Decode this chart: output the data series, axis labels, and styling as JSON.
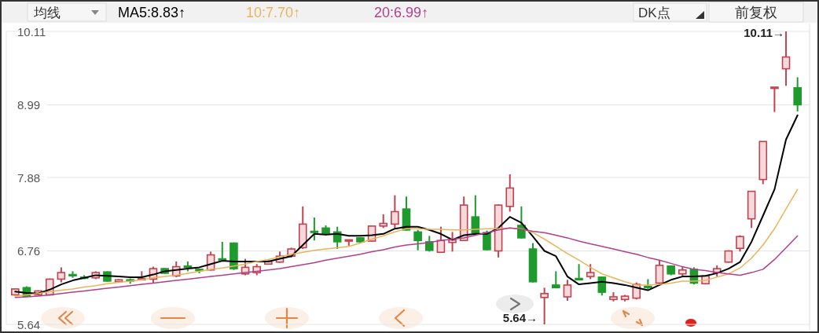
{
  "chart_data": [
    {
      "type": "candlestick",
      "categories": [
        null,
        null,
        null,
        null,
        null,
        null,
        null,
        null,
        null,
        null,
        null,
        null,
        null,
        null,
        null,
        null,
        null,
        null,
        null,
        null,
        null,
        null,
        null,
        null,
        null,
        null,
        null,
        null,
        null,
        null,
        null,
        null,
        null,
        null,
        null,
        null,
        null,
        null,
        null,
        null,
        null,
        null,
        null,
        null,
        null,
        null,
        null,
        null,
        null,
        null,
        null,
        null,
        null,
        null,
        null,
        null,
        null,
        null,
        null,
        null,
        null,
        null,
        null,
        null,
        null,
        null,
        null,
        null,
        null
      ],
      "ohlc": [
        [
          6.09,
          6.19,
          6.08,
          6.18
        ],
        [
          6.2,
          6.22,
          6.06,
          6.07
        ],
        [
          6.09,
          6.16,
          6.08,
          6.15
        ],
        [
          6.09,
          6.34,
          6.08,
          6.33
        ],
        [
          6.33,
          6.51,
          6.28,
          6.43
        ],
        [
          6.4,
          6.45,
          6.35,
          6.39
        ],
        [
          6.36,
          6.39,
          6.33,
          6.35
        ],
        [
          6.35,
          6.45,
          6.33,
          6.43
        ],
        [
          6.44,
          6.45,
          6.29,
          6.3
        ],
        [
          6.29,
          6.33,
          6.28,
          6.32
        ],
        [
          6.32,
          6.34,
          6.26,
          6.31
        ],
        [
          6.32,
          6.45,
          6.31,
          6.34
        ],
        [
          6.33,
          6.52,
          6.27,
          6.49
        ],
        [
          6.49,
          6.5,
          6.41,
          6.42
        ],
        [
          6.38,
          6.6,
          6.36,
          6.52
        ],
        [
          6.53,
          6.6,
          6.45,
          6.52
        ],
        [
          6.48,
          6.49,
          6.42,
          6.46
        ],
        [
          6.47,
          6.75,
          6.46,
          6.7
        ],
        [
          6.64,
          6.9,
          6.62,
          6.63
        ],
        [
          6.88,
          6.89,
          6.47,
          6.49
        ],
        [
          6.41,
          6.64,
          6.39,
          6.51
        ],
        [
          6.43,
          6.56,
          6.39,
          6.52
        ],
        [
          6.56,
          6.62,
          6.55,
          6.6
        ],
        [
          6.59,
          6.75,
          6.58,
          6.68
        ],
        [
          6.68,
          6.81,
          6.66,
          6.79
        ],
        [
          6.81,
          7.44,
          6.79,
          7.17
        ],
        [
          7.06,
          7.27,
          6.92,
          7.05
        ],
        [
          7.11,
          7.15,
          7.0,
          7.03
        ],
        [
          7.05,
          7.13,
          6.79,
          6.9
        ],
        [
          6.91,
          6.93,
          6.84,
          6.93
        ],
        [
          6.96,
          6.97,
          6.88,
          6.9
        ],
        [
          6.91,
          7.14,
          6.9,
          7.14
        ],
        [
          7.14,
          7.32,
          7.11,
          7.18
        ],
        [
          7.17,
          7.61,
          7.11,
          7.36
        ],
        [
          7.4,
          7.59,
          7.07,
          7.08
        ],
        [
          7.05,
          7.08,
          6.77,
          6.92
        ],
        [
          6.9,
          6.99,
          6.75,
          6.77
        ],
        [
          6.74,
          7.13,
          6.73,
          6.92
        ],
        [
          6.89,
          7.05,
          6.75,
          6.93
        ],
        [
          6.92,
          7.59,
          6.92,
          7.46
        ],
        [
          7.28,
          7.61,
          7.0,
          7.04
        ],
        [
          7.04,
          7.07,
          6.77,
          6.78
        ],
        [
          6.76,
          7.47,
          6.66,
          7.46
        ],
        [
          7.44,
          7.93,
          7.36,
          7.72
        ],
        [
          7.15,
          7.44,
          6.95,
          6.96
        ],
        [
          6.79,
          6.88,
          6.28,
          6.29
        ],
        [
          6.05,
          6.2,
          5.64,
          6.11
        ],
        [
          6.24,
          6.45,
          6.19,
          6.2
        ],
        [
          6.06,
          6.32,
          6.0,
          6.24
        ],
        [
          6.34,
          6.56,
          6.31,
          6.32
        ],
        [
          6.37,
          6.56,
          6.33,
          6.43
        ],
        [
          6.36,
          6.37,
          6.08,
          6.13
        ],
        [
          6.02,
          6.13,
          5.99,
          6.06
        ],
        [
          6.02,
          6.09,
          5.99,
          6.07
        ],
        [
          6.04,
          6.28,
          6.02,
          6.25
        ],
        [
          6.22,
          6.33,
          6.18,
          6.21
        ],
        [
          6.27,
          6.62,
          6.25,
          6.54
        ],
        [
          6.53,
          6.54,
          6.39,
          6.41
        ],
        [
          6.41,
          6.52,
          6.37,
          6.47
        ],
        [
          6.48,
          6.51,
          6.25,
          6.27
        ],
        [
          6.26,
          6.39,
          6.25,
          6.38
        ],
        [
          6.43,
          6.54,
          6.37,
          6.49
        ],
        [
          6.59,
          6.77,
          6.58,
          6.76
        ],
        [
          6.8,
          7.0,
          6.75,
          6.98
        ],
        [
          7.25,
          7.67,
          7.11,
          7.67
        ],
        [
          7.85,
          8.43,
          7.78,
          8.43
        ],
        [
          9.24,
          9.26,
          8.88,
          9.26
        ],
        [
          9.54,
          10.11,
          9.28,
          9.72
        ],
        [
          9.25,
          9.41,
          8.89,
          8.99
        ]
      ],
      "colors": [
        "#c0444f",
        "#1f9a2c",
        "#c0444f",
        "#c0444f",
        "#c0444f",
        "#1f9a2c",
        "#1f9a2c",
        "#c0444f",
        "#1f9a2c",
        "#c0444f",
        "#1f9a2c",
        "#c0444f",
        "#c0444f",
        "#1f9a2c",
        "#c0444f",
        "#1f9a2c",
        "#1f9a2c",
        "#c0444f",
        "#1f9a2c",
        "#1f9a2c",
        "#c0444f",
        "#c0444f",
        "#c0444f",
        "#c0444f",
        "#c0444f",
        "#c0444f",
        "#1f9a2c",
        "#1f9a2c",
        "#1f9a2c",
        "#c0444f",
        "#1f9a2c",
        "#c0444f",
        "#c0444f",
        "#c0444f",
        "#1f9a2c",
        "#1f9a2c",
        "#1f9a2c",
        "#c0444f",
        "#c0444f",
        "#c0444f",
        "#1f9a2c",
        "#1f9a2c",
        "#c0444f",
        "#c0444f",
        "#1f9a2c",
        "#1f9a2c",
        "#c0444f",
        "#1f9a2c",
        "#c0444f",
        "#1f9a2c",
        "#c0444f",
        "#1f9a2c",
        "#c0444f",
        "#c0444f",
        "#c0444f",
        "#1f9a2c",
        "#c0444f",
        "#1f9a2c",
        "#c0444f",
        "#1f9a2c",
        "#c0444f",
        "#c0444f",
        "#c0444f",
        "#c0444f",
        "#c0444f",
        "#c0444f",
        "#c0444f",
        "#c0444f",
        "#1f9a2c"
      ],
      "ylim": [
        5.64,
        10.11
      ],
      "yticks": [
        5.64,
        6.76,
        7.88,
        8.99,
        10.11
      ],
      "grid": "y",
      "tick_labels": "y",
      "annotations": [
        "均线",
        "DK点",
        "前复权",
        "10.11→",
        "5.64→"
      ]
    },
    {
      "type": "line",
      "categories": [
        null,
        null,
        null,
        null,
        null,
        null,
        null,
        null,
        null,
        null,
        null,
        null,
        null,
        null,
        null,
        null,
        null,
        null,
        null,
        null,
        null,
        null,
        null,
        null,
        null,
        null,
        null,
        null,
        null,
        null,
        null,
        null,
        null,
        null,
        null,
        null,
        null,
        null,
        null,
        null,
        null,
        null,
        null,
        null,
        null,
        null,
        null,
        null,
        null,
        null,
        null,
        null,
        null,
        null,
        null,
        null,
        null,
        null,
        null,
        null,
        null,
        null,
        null,
        null,
        null,
        null,
        null,
        null,
        null
      ],
      "series": [
        {
          "name": "MA5:8.83↑",
          "color": "#000000",
          "values": [
            6.14,
            6.12,
            6.11,
            6.17,
            6.25,
            6.31,
            6.35,
            6.39,
            6.38,
            6.37,
            6.36,
            6.36,
            6.4,
            6.45,
            6.47,
            6.49,
            6.51,
            6.56,
            6.61,
            6.6,
            6.6,
            6.6,
            6.6,
            6.64,
            6.68,
            6.85,
            7.02,
            7.01,
            7.02,
            6.99,
            6.99,
            7.0,
            7.02,
            7.1,
            7.13,
            7.13,
            7.08,
            7.02,
            6.93,
            7.0,
            7.02,
            7.02,
            7.11,
            7.28,
            7.19,
            6.98,
            6.76,
            6.68,
            6.37,
            6.25,
            6.27,
            6.29,
            6.27,
            6.24,
            6.2,
            6.16,
            6.24,
            6.32,
            6.37,
            6.37,
            6.38,
            6.42,
            6.49,
            6.59,
            6.9,
            7.3,
            7.7,
            8.46,
            8.83
          ]
        },
        {
          "name": "10:7.70↑",
          "color": "#e8b45c",
          "values": [
            6.07,
            6.09,
            6.11,
            6.14,
            6.16,
            6.18,
            6.21,
            6.23,
            6.26,
            6.28,
            6.3,
            6.32,
            6.35,
            6.37,
            6.39,
            6.42,
            6.45,
            6.48,
            6.5,
            6.53,
            6.56,
            6.6,
            6.63,
            6.67,
            6.71,
            6.74,
            6.77,
            6.79,
            6.81,
            6.83,
            6.88,
            6.94,
            6.99,
            7.05,
            7.1,
            7.1,
            7.09,
            7.09,
            7.08,
            7.08,
            7.09,
            7.1,
            7.1,
            7.11,
            7.1,
            7.04,
            6.94,
            6.83,
            6.72,
            6.62,
            6.51,
            6.41,
            6.35,
            6.29,
            6.24,
            6.24,
            6.25,
            6.27,
            6.3,
            6.3,
            6.31,
            6.36,
            6.41,
            6.5,
            6.65,
            6.85,
            7.1,
            7.4,
            7.7
          ]
        },
        {
          "name": "20:6.99↑",
          "color": "#b23f8c",
          "values": [
            6.05,
            6.06,
            6.07,
            6.09,
            6.11,
            6.13,
            6.15,
            6.17,
            6.19,
            6.21,
            6.23,
            6.25,
            6.27,
            6.29,
            6.31,
            6.33,
            6.35,
            6.37,
            6.39,
            6.41,
            6.43,
            6.45,
            6.47,
            6.49,
            6.52,
            6.55,
            6.58,
            6.62,
            6.65,
            6.68,
            6.71,
            6.75,
            6.78,
            6.82,
            6.85,
            6.87,
            6.89,
            6.92,
            6.94,
            6.96,
            7.0,
            7.04,
            7.08,
            7.11,
            7.09,
            7.06,
            7.04,
            7.0,
            6.96,
            6.91,
            6.87,
            6.83,
            6.79,
            6.75,
            6.71,
            6.66,
            6.62,
            6.57,
            6.52,
            6.48,
            6.46,
            6.43,
            6.41,
            6.39,
            6.43,
            6.48,
            6.63,
            6.81,
            6.99
          ]
        }
      ],
      "ylim": [
        5.64,
        10.11
      ],
      "tick_labels": false,
      "legend": "top left"
    }
  ]
}
